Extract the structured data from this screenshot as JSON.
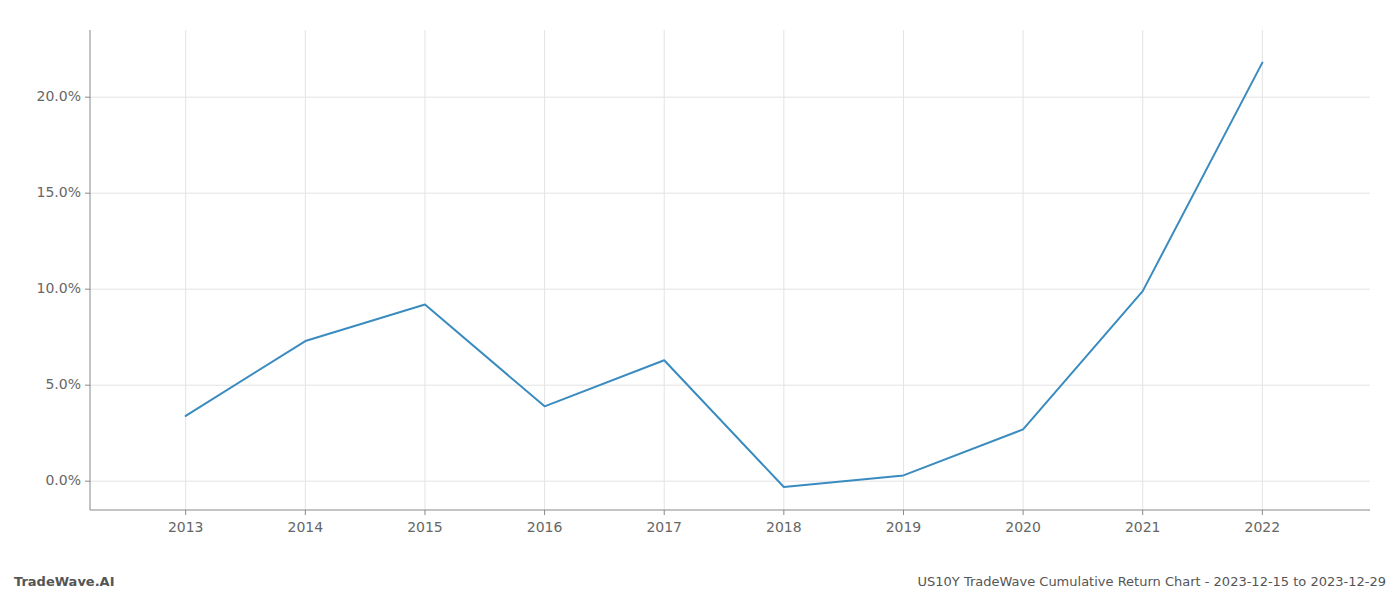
{
  "chart_data": {
    "type": "line",
    "title": "US10Y TradeWave Cumulative Return Chart - 2023-12-15 to 2023-12-29",
    "annotations": [
      "TradeWave.AI"
    ],
    "x": [
      2013,
      2014,
      2015,
      2016,
      2017,
      2018,
      2019,
      2020,
      2021,
      2022
    ],
    "values": [
      3.4,
      7.3,
      9.2,
      3.9,
      6.3,
      -0.3,
      0.3,
      2.7,
      9.9,
      21.8
    ],
    "color": "#3a8bbf",
    "xlim": [
      2012.2,
      2022.9
    ],
    "xticks": [
      2013,
      2014,
      2015,
      2016,
      2017,
      2018,
      2019,
      2020,
      2021,
      2022
    ],
    "ylim": [
      -1.5,
      23.5
    ],
    "yticks": [
      {
        "value": 0.0,
        "label": "0.0%"
      },
      {
        "value": 5.0,
        "label": "5.0%"
      },
      {
        "value": 10.0,
        "label": "10.0%"
      },
      {
        "value": 15.0,
        "label": "15.0%"
      },
      {
        "value": 20.0,
        "label": "20.0%"
      }
    ],
    "grid": true
  }
}
